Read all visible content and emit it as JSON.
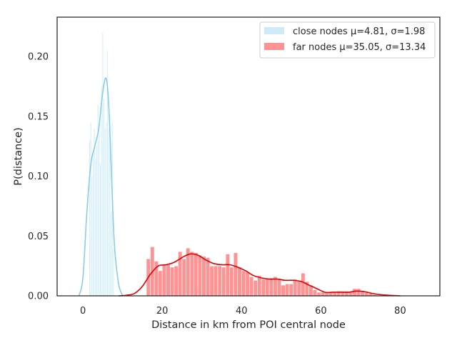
{
  "chart_data": {
    "type": "histogram",
    "title": "",
    "xlabel": "Distance in km from POI central node",
    "ylabel": "P(distance)",
    "xlim": [
      -6.5,
      90
    ],
    "ylim": [
      0,
      0.233
    ],
    "xticks": [
      0,
      20,
      40,
      60,
      80
    ],
    "yticks": [
      0.0,
      0.05,
      0.1,
      0.15,
      0.2
    ],
    "ytick_labels": [
      "0.00",
      "0.05",
      "0.10",
      "0.15",
      "0.20"
    ],
    "grid": false,
    "legend_position": "top-right",
    "series": [
      {
        "name": "close nodes μ=4.81, σ=1.98",
        "color": "#87ceeb",
        "bin_width": 0.3,
        "bins": [
          [
            1.7,
            0.13
          ],
          [
            2.0,
            0.145
          ],
          [
            2.3,
            0.1
          ],
          [
            2.6,
            0.12
          ],
          [
            2.9,
            0.14
          ],
          [
            3.2,
            0.115
          ],
          [
            3.5,
            0.125
          ],
          [
            3.8,
            0.16
          ],
          [
            4.1,
            0.14
          ],
          [
            4.4,
            0.11
          ],
          [
            4.7,
            0.175
          ],
          [
            5.0,
            0.22
          ],
          [
            5.3,
            0.165
          ],
          [
            5.6,
            0.14
          ],
          [
            5.9,
            0.145
          ],
          [
            6.2,
            0.205
          ],
          [
            6.5,
            0.14
          ],
          [
            6.8,
            0.15
          ],
          [
            7.1,
            0.07
          ],
          [
            7.4,
            0.145
          ],
          [
            7.7,
            0.04
          ]
        ],
        "kde": [
          [
            -1.0,
            0.0
          ],
          [
            0.0,
            0.015
          ],
          [
            1.0,
            0.07
          ],
          [
            2.0,
            0.11
          ],
          [
            3.0,
            0.125
          ],
          [
            4.0,
            0.14
          ],
          [
            4.8,
            0.165
          ],
          [
            5.5,
            0.18
          ],
          [
            6.0,
            0.18
          ],
          [
            6.5,
            0.16
          ],
          [
            7.0,
            0.12
          ],
          [
            7.5,
            0.075
          ],
          [
            8.0,
            0.04
          ],
          [
            9.0,
            0.01
          ],
          [
            10.0,
            0.0
          ]
        ]
      },
      {
        "name": "far nodes μ=35.05, σ=13.34",
        "color": "#ff6f6f",
        "kde_color": "#dd0000",
        "bin_width": 1.0,
        "bins": [
          [
            16.5,
            0.031
          ],
          [
            17.5,
            0.041
          ],
          [
            18.5,
            0.029
          ],
          [
            19.5,
            0.021
          ],
          [
            20.5,
            0.026
          ],
          [
            21.5,
            0.026
          ],
          [
            22.5,
            0.024
          ],
          [
            23.5,
            0.025
          ],
          [
            24.5,
            0.037
          ],
          [
            25.5,
            0.031
          ],
          [
            26.5,
            0.04
          ],
          [
            27.5,
            0.037
          ],
          [
            28.5,
            0.036
          ],
          [
            29.5,
            0.034
          ],
          [
            30.5,
            0.033
          ],
          [
            31.5,
            0.032
          ],
          [
            32.5,
            0.025
          ],
          [
            33.5,
            0.025
          ],
          [
            34.5,
            0.025
          ],
          [
            35.5,
            0.024
          ],
          [
            36.5,
            0.035
          ],
          [
            37.5,
            0.024
          ],
          [
            38.5,
            0.036
          ],
          [
            39.5,
            0.024
          ],
          [
            40.5,
            0.021
          ],
          [
            41.5,
            0.02
          ],
          [
            42.5,
            0.016
          ],
          [
            43.5,
            0.013
          ],
          [
            44.5,
            0.017
          ],
          [
            45.5,
            0.014
          ],
          [
            46.5,
            0.014
          ],
          [
            47.5,
            0.015
          ],
          [
            48.5,
            0.016
          ],
          [
            49.5,
            0.014
          ],
          [
            50.5,
            0.009
          ],
          [
            51.5,
            0.01
          ],
          [
            52.5,
            0.01
          ],
          [
            53.5,
            0.014
          ],
          [
            54.5,
            0.013
          ],
          [
            55.5,
            0.019
          ],
          [
            56.5,
            0.012
          ],
          [
            57.5,
            0.009
          ],
          [
            58.5,
            0.005
          ],
          [
            59.5,
            0.003
          ],
          [
            60.5,
            0.003
          ],
          [
            61.5,
            0.003
          ],
          [
            62.5,
            0.003
          ],
          [
            63.5,
            0.003
          ],
          [
            64.5,
            0.004
          ],
          [
            65.5,
            0.004
          ],
          [
            66.5,
            0.004
          ],
          [
            67.5,
            0.003
          ],
          [
            68.5,
            0.006
          ],
          [
            69.5,
            0.006
          ],
          [
            70.5,
            0.004
          ],
          [
            71.5,
            0.003
          ],
          [
            72.5,
            0.002
          ],
          [
            73.5,
            0.001
          ]
        ],
        "kde": [
          [
            9.0,
            0.0
          ],
          [
            11.0,
            0.0005
          ],
          [
            13.0,
            0.002
          ],
          [
            15.0,
            0.008
          ],
          [
            17.0,
            0.018
          ],
          [
            19.0,
            0.025
          ],
          [
            21.0,
            0.026
          ],
          [
            23.0,
            0.028
          ],
          [
            25.0,
            0.032
          ],
          [
            27.0,
            0.035
          ],
          [
            29.0,
            0.034
          ],
          [
            31.0,
            0.03
          ],
          [
            33.0,
            0.027
          ],
          [
            35.0,
            0.026
          ],
          [
            37.0,
            0.026
          ],
          [
            39.0,
            0.024
          ],
          [
            41.0,
            0.021
          ],
          [
            43.0,
            0.017
          ],
          [
            45.0,
            0.015
          ],
          [
            47.0,
            0.014
          ],
          [
            49.0,
            0.014
          ],
          [
            51.0,
            0.013
          ],
          [
            53.0,
            0.013
          ],
          [
            55.0,
            0.012
          ],
          [
            57.0,
            0.009
          ],
          [
            59.0,
            0.006
          ],
          [
            61.0,
            0.003
          ],
          [
            63.0,
            0.003
          ],
          [
            65.0,
            0.003
          ],
          [
            67.0,
            0.003
          ],
          [
            69.0,
            0.004
          ],
          [
            71.0,
            0.0035
          ],
          [
            73.0,
            0.002
          ],
          [
            75.0,
            0.001
          ],
          [
            77.0,
            0.0005
          ],
          [
            80.0,
            0.0
          ]
        ]
      }
    ]
  }
}
